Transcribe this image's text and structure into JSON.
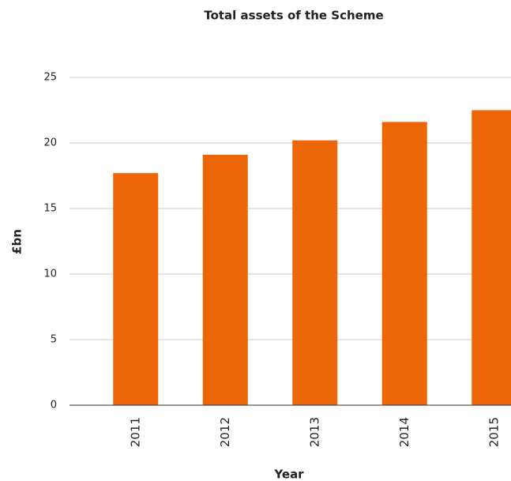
{
  "chart_data": {
    "type": "bar",
    "title": "Total assets of the Scheme",
    "x_label": "Year",
    "y_label": "£bn",
    "categories": [
      "2011",
      "2012",
      "2013",
      "2014",
      "2015"
    ],
    "values": [
      17.7,
      19.1,
      20.2,
      21.6,
      22.5
    ],
    "color": "#ec6608",
    "ylim": [
      0,
      25
    ],
    "yticks": [
      0,
      5,
      10,
      15,
      20,
      25
    ],
    "grid": true
  }
}
